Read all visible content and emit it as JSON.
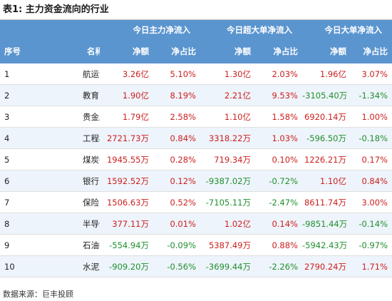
{
  "title": "表1: 主力资金流向的行业",
  "headers": {
    "seq": "序号",
    "name": "名称",
    "groups": [
      "今日主力净流入",
      "今日超大单净流入",
      "今日大单净流入"
    ],
    "amount": "净额",
    "ratio": "净占比"
  },
  "rows": [
    {
      "seq": "1",
      "name": "航运港口",
      "cells": [
        "3.26亿",
        "5.10%",
        "1.30亿",
        "2.03%",
        "1.96亿",
        "3.07%"
      ]
    },
    {
      "seq": "2",
      "name": "教育",
      "cells": [
        "1.90亿",
        "8.19%",
        "2.21亿",
        "9.53%",
        "-3105.40万",
        "-1.34%"
      ]
    },
    {
      "seq": "3",
      "name": "贵金属",
      "cells": [
        "1.79亿",
        "2.58%",
        "1.10亿",
        "1.58%",
        "6920.14万",
        "1.00%"
      ]
    },
    {
      "seq": "4",
      "name": "工程机械",
      "cells": [
        "2721.73万",
        "0.84%",
        "3318.22万",
        "1.03%",
        "-596.50万",
        "-0.18%"
      ]
    },
    {
      "seq": "5",
      "name": "煤炭行业",
      "cells": [
        "1945.55万",
        "0.28%",
        "719.34万",
        "0.10%",
        "1226.21万",
        "0.17%"
      ]
    },
    {
      "seq": "6",
      "name": "银行",
      "cells": [
        "1592.52万",
        "0.12%",
        "-9387.02万",
        "-0.72%",
        "1.10亿",
        "0.84%"
      ]
    },
    {
      "seq": "7",
      "name": "保险",
      "cells": [
        "1506.63万",
        "0.52%",
        "-7105.11万",
        "-2.47%",
        "8611.74万",
        "3.00%"
      ]
    },
    {
      "seq": "8",
      "name": "半导体",
      "cells": [
        "377.11万",
        "0.01%",
        "1.02亿",
        "0.14%",
        "-9851.44万",
        "-0.14%"
      ]
    },
    {
      "seq": "9",
      "name": "石油行业",
      "cells": [
        "-554.94万",
        "-0.09%",
        "5387.49万",
        "0.88%",
        "-5942.43万",
        "-0.97%"
      ]
    },
    {
      "seq": "10",
      "name": "水泥建材",
      "cells": [
        "-909.20万",
        "-0.56%",
        "-3699.44万",
        "-2.26%",
        "2790.24万",
        "1.71%"
      ]
    }
  ],
  "colors": {
    "header_bg": "#5b95cf",
    "positive": "#cc1f1f",
    "negative": "#1f8f2e",
    "stripe": "#eef4fb"
  },
  "source": "数据来源：巨丰投顾"
}
